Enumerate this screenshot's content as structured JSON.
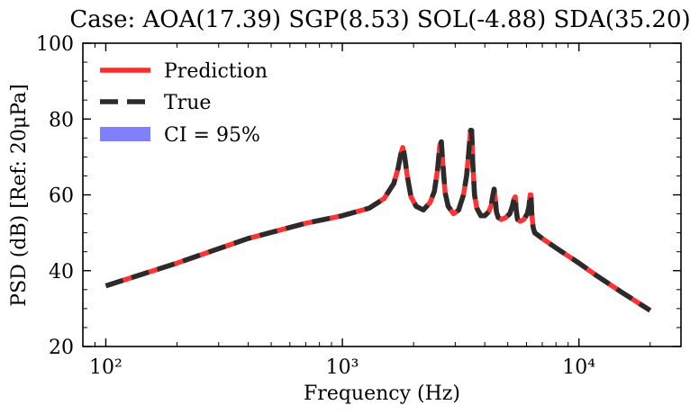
{
  "chart_data": {
    "type": "line",
    "title": "Case: AOA(17.39) SGP(8.53) SOL(-4.88) SDA(35.20)",
    "xlabel": "Frequency (Hz)",
    "ylabel": "PSD (dB) [Ref: 20μPa]",
    "xscale": "log",
    "xlim": [
      80,
      27000
    ],
    "ylim": [
      20,
      100
    ],
    "x_ticks": [
      {
        "value": 100,
        "label": "10²"
      },
      {
        "value": 1000,
        "label": "10³"
      },
      {
        "value": 10000,
        "label": "10⁴"
      }
    ],
    "y_ticks": [
      {
        "value": 20,
        "label": "20"
      },
      {
        "value": 40,
        "label": "40"
      },
      {
        "value": 60,
        "label": "60"
      },
      {
        "value": 80,
        "label": "80"
      },
      {
        "value": 100,
        "label": "100"
      }
    ],
    "grid": false,
    "legend_position": "top-left",
    "legend": [
      {
        "label": "Prediction",
        "style": "solid",
        "color": "#ff2a2a"
      },
      {
        "label": "True",
        "style": "dashed",
        "color": "#2b2b2b"
      },
      {
        "label": "CI = 95%",
        "style": "patch",
        "color": "#8080ff"
      }
    ],
    "series": [
      {
        "name": "Prediction",
        "color": "#ff3333",
        "x": [
          100,
          200,
          400,
          700,
          1000,
          1300,
          1500,
          1650,
          1720,
          1770,
          1800,
          1830,
          1880,
          1950,
          2050,
          2200,
          2350,
          2450,
          2530,
          2580,
          2620,
          2660,
          2720,
          2800,
          2950,
          3100,
          3250,
          3350,
          3420,
          3480,
          3520,
          3560,
          3620,
          3700,
          3850,
          4000,
          4150,
          4250,
          4330,
          4380,
          4430,
          4480,
          4560,
          4700,
          4900,
          5100,
          5230,
          5320,
          5380,
          5430,
          5500,
          5650,
          5850,
          6050,
          6150,
          6220,
          6270,
          6320,
          6400,
          6500,
          7000,
          8000,
          10000,
          12000,
          15000,
          20000
        ],
        "y": [
          36,
          42,
          48.5,
          52.5,
          54.5,
          56.5,
          59,
          63,
          67,
          71,
          72.5,
          70.5,
          65,
          59.5,
          57,
          56,
          58,
          61,
          67,
          73,
          74,
          68,
          60.5,
          57,
          55,
          56,
          60,
          65,
          71,
          77,
          77,
          68,
          60,
          56.5,
          54.5,
          54.5,
          55.5,
          57,
          60,
          61.5,
          59,
          55.5,
          54,
          53.5,
          54,
          55,
          57,
          59,
          59.5,
          56,
          53.5,
          53,
          53.5,
          55,
          57,
          60,
          60,
          55,
          51.5,
          50,
          48.5,
          46,
          42,
          38.5,
          34.5,
          29.5
        ]
      },
      {
        "name": "True",
        "color": "#2b2b2b",
        "x": [
          100,
          200,
          400,
          700,
          1000,
          1300,
          1500,
          1650,
          1720,
          1770,
          1800,
          1830,
          1880,
          1950,
          2050,
          2200,
          2350,
          2450,
          2530,
          2580,
          2620,
          2660,
          2720,
          2800,
          2950,
          3100,
          3250,
          3350,
          3420,
          3480,
          3520,
          3560,
          3620,
          3700,
          3850,
          4000,
          4150,
          4250,
          4330,
          4380,
          4430,
          4480,
          4560,
          4700,
          4900,
          5100,
          5230,
          5320,
          5380,
          5430,
          5500,
          5650,
          5850,
          6050,
          6150,
          6220,
          6270,
          6320,
          6400,
          6500,
          7000,
          8000,
          10000,
          12000,
          15000,
          20000
        ],
        "y": [
          36,
          42,
          48.5,
          52.5,
          54.5,
          56.5,
          59,
          63,
          67,
          71,
          72.5,
          70.5,
          65,
          59.5,
          57,
          56,
          58,
          61,
          67,
          73,
          74,
          68,
          60.5,
          57,
          55,
          56,
          60,
          65,
          71,
          77,
          77,
          68,
          60,
          56.5,
          54.5,
          54.5,
          55.5,
          57,
          60,
          61.5,
          59,
          55.5,
          54,
          53.5,
          54,
          55,
          57,
          59,
          59.5,
          56,
          53.5,
          53,
          53.5,
          55,
          57,
          60,
          60,
          55,
          51.5,
          50,
          48.5,
          46,
          42,
          38.5,
          34.5,
          29.5
        ]
      }
    ]
  }
}
